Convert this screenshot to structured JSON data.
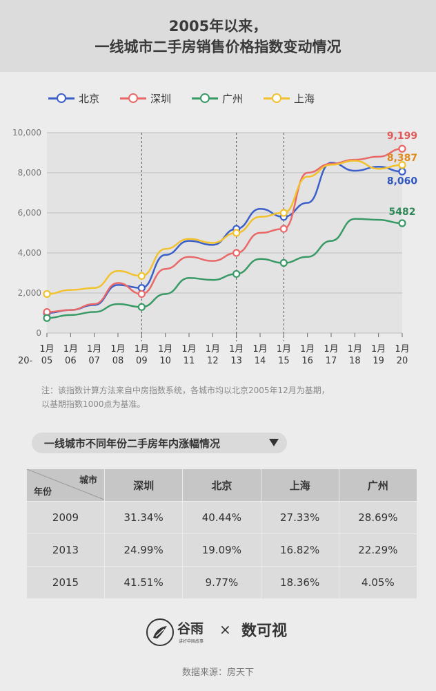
{
  "header": {
    "title_line1": "2005年以来，",
    "title_line2": "一线城市二手房销售价格指数变动情况"
  },
  "chart_data": {
    "type": "line",
    "y_ticks": [
      "10,000",
      "8,000",
      "6,000",
      "4,000",
      "2,000",
      "0"
    ],
    "ylim": [
      0,
      10000
    ],
    "x_prefix": "20-",
    "x_ticks": [
      {
        "top": "1月",
        "bottom": "05"
      },
      {
        "top": "1月",
        "bottom": "06"
      },
      {
        "top": "1月",
        "bottom": "07"
      },
      {
        "top": "1月",
        "bottom": "08"
      },
      {
        "top": "1月",
        "bottom": "09"
      },
      {
        "top": "1月",
        "bottom": "10"
      },
      {
        "top": "1月",
        "bottom": "11"
      },
      {
        "top": "1月",
        "bottom": "12"
      },
      {
        "top": "1月",
        "bottom": "13"
      },
      {
        "top": "1月",
        "bottom": "14"
      },
      {
        "top": "1月",
        "bottom": "15"
      },
      {
        "top": "1月",
        "bottom": "16"
      },
      {
        "top": "1月",
        "bottom": "17"
      },
      {
        "top": "1月",
        "bottom": "18"
      },
      {
        "top": "1月",
        "bottom": "19"
      },
      {
        "top": "1月",
        "bottom": "20"
      }
    ],
    "vlines_at": [
      4,
      8,
      10
    ],
    "series": [
      {
        "name": "北京",
        "color": "#3a5fc8",
        "label_color": "#2f56c0",
        "end_label": "8,060",
        "marker_idx": [
          0,
          4,
          8,
          10,
          15
        ],
        "values": [
          1000,
          1150,
          1400,
          2400,
          2250,
          3900,
          4600,
          4400,
          5200,
          6200,
          5800,
          6500,
          8500,
          8100,
          8300,
          8060
        ]
      },
      {
        "name": "深圳",
        "color": "#e96868",
        "label_color": "#e05a5a",
        "end_label": "9,199",
        "marker_idx": [
          0,
          4,
          8,
          10,
          15
        ],
        "values": [
          1050,
          1150,
          1450,
          2500,
          1950,
          3200,
          3800,
          3600,
          4000,
          5000,
          5200,
          8000,
          8450,
          8650,
          8800,
          9199
        ]
      },
      {
        "name": "广州",
        "color": "#3a9a66",
        "label_color": "#2e8a58",
        "end_label": "5482",
        "marker_idx": [
          0,
          4,
          8,
          10,
          15
        ],
        "values": [
          750,
          900,
          1050,
          1450,
          1300,
          1950,
          2750,
          2650,
          2950,
          3700,
          3500,
          3800,
          4600,
          5700,
          5650,
          5482
        ]
      },
      {
        "name": "上海",
        "color": "#f2c12e",
        "label_color": "#e08a1e",
        "end_label": "8,387",
        "marker_idx": [
          0,
          4,
          8,
          10,
          15
        ],
        "values": [
          1950,
          2150,
          2250,
          3100,
          2850,
          4200,
          4700,
          4500,
          5000,
          5800,
          6000,
          7800,
          8400,
          8600,
          8200,
          8387
        ]
      }
    ]
  },
  "note": {
    "line1": "注：该指数计算方法来自中房指数系统，各城市均以北京2005年12月为基期，",
    "line2": "以基期指数1000点为基准。"
  },
  "section_title": "一线城市不同年份二手房年内涨幅情况",
  "table": {
    "corner_top": "城市",
    "corner_bottom": "年份",
    "columns": [
      "深圳",
      "北京",
      "上海",
      "广州"
    ],
    "rows": [
      {
        "year": "2009",
        "cells": [
          "31.34%",
          "40.44%",
          "27.33%",
          "28.69%"
        ]
      },
      {
        "year": "2013",
        "cells": [
          "24.99%",
          "19.09%",
          "16.82%",
          "22.29%"
        ]
      },
      {
        "year": "2015",
        "cells": [
          "41.51%",
          "9.77%",
          "18.36%",
          "4.05%"
        ]
      }
    ]
  },
  "footer": {
    "logo1_text": "谷雨",
    "logo1_sub": "讲好中国故事",
    "times": "×",
    "logo2_text": "数可视",
    "source": "数据来源：房天下"
  }
}
